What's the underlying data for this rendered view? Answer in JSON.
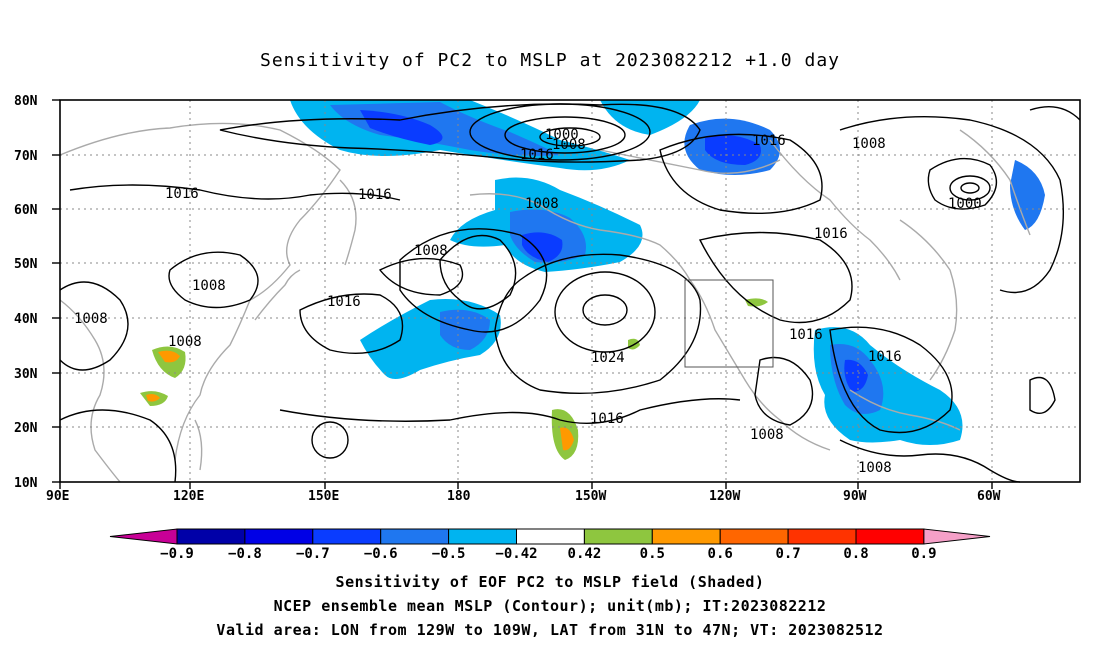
{
  "title": "Sensitivity of PC2 to MSLP at 2023082212 +1.0 day",
  "lat_labels": [
    "80N",
    "70N",
    "60N",
    "50N",
    "40N",
    "30N",
    "20N",
    "10N"
  ],
  "lon_labels": [
    "90E",
    "120E",
    "150E",
    "180",
    "150W",
    "120W",
    "90W",
    "60W"
  ],
  "contour_labels": [
    {
      "id": "c1000a",
      "text": "1000"
    },
    {
      "id": "c1008a",
      "text": "1008"
    },
    {
      "id": "c1016a",
      "text": "1016"
    },
    {
      "id": "c1016b",
      "text": "1016"
    },
    {
      "id": "c1008b",
      "text": "1008"
    },
    {
      "id": "c1016c",
      "text": "1016"
    },
    {
      "id": "c1016d",
      "text": "1016"
    },
    {
      "id": "c1008c",
      "text": "1008"
    },
    {
      "id": "c1000b",
      "text": "1000"
    },
    {
      "id": "c1008d",
      "text": "1008"
    },
    {
      "id": "c1016e",
      "text": "1016"
    },
    {
      "id": "c1008e",
      "text": "1008"
    },
    {
      "id": "c1016f",
      "text": "1016"
    },
    {
      "id": "c1008f",
      "text": "1008"
    },
    {
      "id": "c1008g",
      "text": "1008"
    },
    {
      "id": "c1024",
      "text": "1024"
    },
    {
      "id": "c1016g",
      "text": "1016"
    },
    {
      "id": "c1016h",
      "text": "1016"
    },
    {
      "id": "c1016i",
      "text": "1016"
    },
    {
      "id": "c1008h",
      "text": "1008"
    },
    {
      "id": "c1008i",
      "text": "1008"
    }
  ],
  "colorbar": {
    "labels": [
      "-0.9",
      "-0.8",
      "-0.7",
      "-0.6",
      "-0.5",
      "-0.42",
      "0.42",
      "0.5",
      "0.6",
      "0.7",
      "0.8",
      "0.9"
    ],
    "colors": [
      "#0000a8",
      "#0000e6",
      "#0a3cff",
      "#1f77f0",
      "#00b4f0",
      "#ffffff",
      "#8ec63f",
      "#ff9900",
      "#ff6600",
      "#ff3300",
      "#ff0000"
    ],
    "low_extend_color": "#c80096",
    "high_extend_color": "#f5a0c8"
  },
  "captions": {
    "line1": "Sensitivity of EOF PC2 to MSLP field (Shaded)",
    "line2": "NCEP ensemble mean MSLP (Contour); unit(mb); IT:2023082212",
    "line3": "Valid area: LON from 129W to 109W, LAT from 31N to 47N; VT: 2023082512"
  }
}
